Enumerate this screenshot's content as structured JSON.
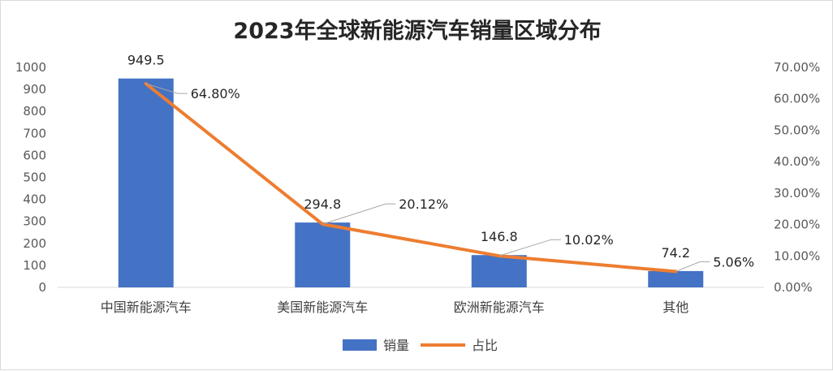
{
  "chart_data": {
    "type": "bar",
    "title": "2023年全球新能源汽车销量区域分布",
    "categories": [
      "中国新能源汽车",
      "美国新能源汽车",
      "欧洲新能源汽车",
      "其他"
    ],
    "series": [
      {
        "name": "销量",
        "type": "bar",
        "axis": "left",
        "color": "#4472C4",
        "values": [
          949.5,
          294.8,
          146.8,
          74.2
        ],
        "labels": [
          "949.5",
          "294.8",
          "146.8",
          "74.2"
        ]
      },
      {
        "name": "占比",
        "type": "line",
        "axis": "right",
        "color": "#ED7D31",
        "values": [
          0.648,
          0.2012,
          0.1002,
          0.0506
        ],
        "labels": [
          "64.80%",
          "20.12%",
          "10.02%",
          "5.06%"
        ]
      }
    ],
    "y_left": {
      "min": 0,
      "max": 1000,
      "ticks": [
        "0",
        "100",
        "200",
        "300",
        "400",
        "500",
        "600",
        "700",
        "800",
        "900",
        "1000"
      ]
    },
    "y_right": {
      "min": 0,
      "max": 0.7,
      "ticks": [
        "0.00%",
        "10.00%",
        "20.00%",
        "30.00%",
        "40.00%",
        "50.00%",
        "60.00%",
        "70.00%"
      ]
    },
    "grid": false,
    "legend_position": "bottom"
  }
}
